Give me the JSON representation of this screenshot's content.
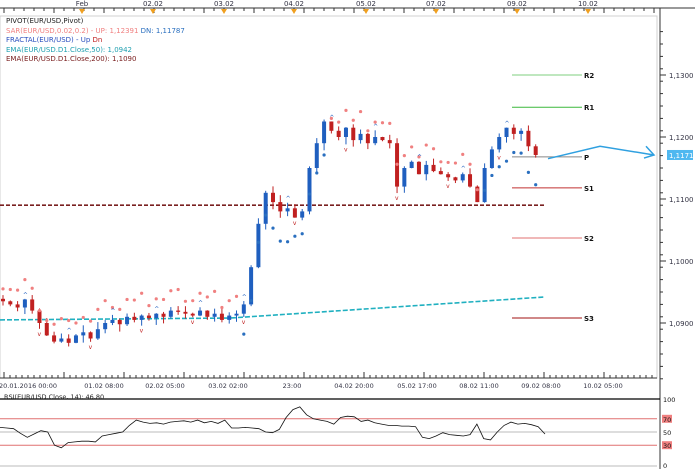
{
  "top_axis": {
    "labels": [
      "Feb",
      "02.02",
      "03.02",
      "04.02",
      "05.02",
      "07.02",
      "09.02",
      "10.02"
    ]
  },
  "legend": {
    "pivot": "PIVOT(EUR/USD,Pivot)",
    "sar": "SAR(EUR/USD,0.02,0.2) -  UP: 1,12391",
    "sar_dn": "DN: 1,11787",
    "fractal": "FRACTAL(EUR/USD) -  Up",
    "fractal_dn": "Dn",
    "ema50": "EMA(EUR/USD.D1.Close,50): 1,0942",
    "ema200": "EMA(EUR/USD.D1.Close,200): 1,1090"
  },
  "price_axis": {
    "ticks": [
      "1,1300",
      "1,1200",
      "1,1100",
      "1,1000",
      "1,0900"
    ],
    "current": "1,1171"
  },
  "pivots": [
    {
      "label": "R2",
      "value": 1.13,
      "color": "#7fcf7f"
    },
    {
      "label": "R1",
      "value": 1.1248,
      "color": "#3cb83c"
    },
    {
      "label": "P",
      "value": 1.1168,
      "color": "#888888"
    },
    {
      "label": "S1",
      "value": 1.1118,
      "color": "#c03030"
    },
    {
      "label": "S2",
      "value": 1.1037,
      "color": "#e07070"
    },
    {
      "label": "S3",
      "value": 1.0908,
      "color": "#a01010"
    }
  ],
  "ema200_value": 1.109,
  "ema50_range": [
    1.0905,
    1.0942
  ],
  "closes": [
    1.0935,
    1.093,
    1.0925,
    1.0938,
    1.092,
    1.09,
    1.088,
    1.087,
    1.0875,
    1.0868,
    1.088,
    1.0885,
    1.0875,
    1.089,
    1.09,
    1.0905,
    1.0898,
    1.091,
    1.0905,
    1.0912,
    1.0908,
    1.0915,
    1.091,
    1.092,
    1.0918,
    1.0915,
    1.0912,
    1.092,
    1.091,
    1.0915,
    1.0905,
    1.0912,
    1.0915,
    1.093,
    1.099,
    1.106,
    1.111,
    1.1095,
    1.108,
    1.1085,
    1.107,
    1.108,
    1.115,
    1.119,
    1.1225,
    1.121,
    1.12,
    1.1215,
    1.1195,
    1.1205,
    1.119,
    1.12,
    1.1195,
    1.119,
    1.112,
    1.115,
    1.116,
    1.114,
    1.1155,
    1.1145,
    1.114,
    1.1135,
    1.113,
    1.114,
    1.112,
    1.1095,
    1.115,
    1.118,
    1.12,
    1.1215,
    1.1205,
    1.121,
    1.1185,
    1.1171
  ],
  "rsi": {
    "label": "RSI(EUR/USD.Close, 14): 46,80",
    "levels": [
      "100",
      "70",
      "50",
      "30",
      "0"
    ],
    "values": [
      57,
      56,
      55,
      48,
      42,
      47,
      52,
      50,
      30,
      26,
      34,
      35,
      36,
      36,
      35,
      44,
      46,
      48,
      50,
      60,
      68,
      65,
      63,
      64,
      62,
      65,
      66,
      67,
      65,
      68,
      64,
      66,
      63,
      68,
      56,
      56,
      57,
      56,
      55,
      50,
      49,
      54,
      72,
      84,
      88,
      76,
      70,
      68,
      66,
      62,
      72,
      74,
      73,
      66,
      68,
      64,
      62,
      60,
      60,
      59,
      59,
      58,
      42,
      40,
      44,
      49,
      46,
      45,
      44,
      46,
      62,
      40,
      38,
      50,
      60,
      65,
      62,
      63,
      61,
      58,
      47
    ]
  },
  "bottom_axis": {
    "labels": [
      "20.01.2016 00:00",
      "01.02 08:00",
      "02.02 05:00",
      "03.02 02:00",
      "23:00",
      "04.02 20:00",
      "05.02 17:00",
      "08.02 11:00",
      "09.02 08:00",
      "10.02 05:00"
    ]
  },
  "colors": {
    "up": "#1f5fbf",
    "down": "#c02020",
    "sar_up": "#2a6fbf",
    "sar_dn": "#f08080",
    "ema50": "#20b0c0",
    "ema200": "#7a2020",
    "arrow": "#2fa0e0"
  }
}
